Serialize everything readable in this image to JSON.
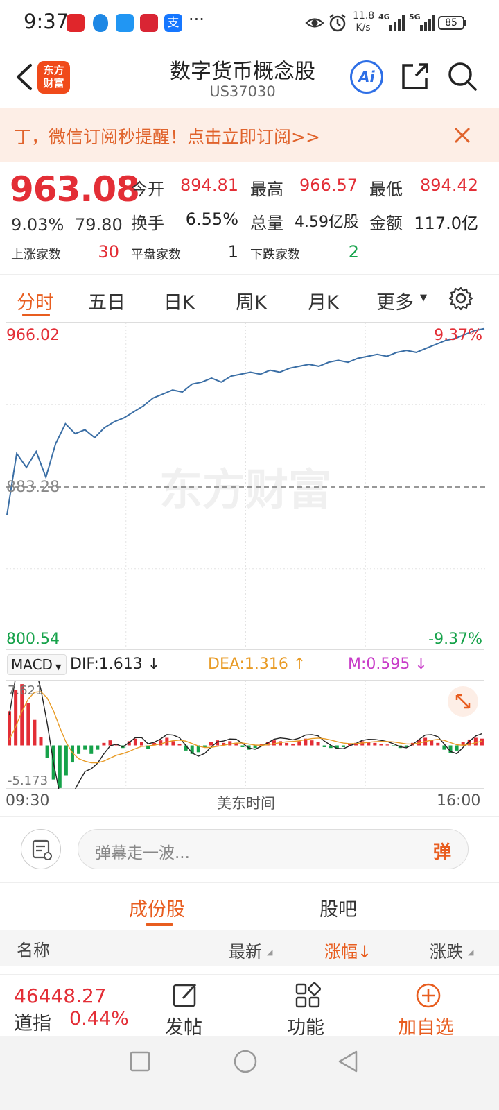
{
  "status_bar": {
    "time": "9:37",
    "net_speed_top": "11.8",
    "net_speed_unit": "K/s",
    "net_4g": "4G",
    "net_5g": "5G",
    "battery": "85",
    "more": "···"
  },
  "header": {
    "logo_line1": "东方",
    "logo_line2": "财富",
    "title": "数字货币概念股",
    "code": "US37030",
    "ai_label": "Ai"
  },
  "banner": {
    "text": "丁，微信订阅秒提醒！点击立即订阅>>"
  },
  "quote": {
    "price": "963.08",
    "change_pct": "9.03%",
    "change": "79.80",
    "open_label": "今开",
    "open": "894.81",
    "high_label": "最高",
    "high": "966.57",
    "low_label": "最低",
    "low": "894.42",
    "turnover_label": "换手",
    "turnover": "6.55%",
    "volume_label": "总量",
    "volume": "4.59亿股",
    "amount_label": "金额",
    "amount": "117.0亿",
    "up_label": "上涨家数",
    "up_count": "30",
    "flat_label": "平盘家数",
    "flat_count": "1",
    "down_label": "下跌家数",
    "down_count": "2"
  },
  "tabs": [
    "分时",
    "五日",
    "日K",
    "周K",
    "月K",
    "更多"
  ],
  "chart": {
    "top_price": "966.02",
    "top_pct": "9.37%",
    "base_price": "883.28",
    "bottom_price": "800.54",
    "bottom_pct": "-9.37%",
    "watermark": "东方财富",
    "time_start": "09:30",
    "time_mid": "美东时间",
    "time_end": "16:00",
    "line_color": "#3a6ea5",
    "up_color": "#e32e36",
    "down_color": "#16a24a"
  },
  "chart_data": {
    "type": "line",
    "title": "",
    "xlabel": "美东时间",
    "ylabel": "",
    "x_range": [
      "09:30",
      "16:00"
    ],
    "ylim": [
      800.54,
      966.02
    ],
    "baseline": 883.28,
    "series": [
      {
        "name": "",
        "values": [
          869,
          900,
          893,
          901,
          888,
          905,
          915,
          910,
          912,
          908,
          913,
          916,
          918,
          921,
          924,
          928,
          930,
          932,
          931,
          935,
          936,
          938,
          936,
          939,
          940,
          941,
          940,
          942,
          941,
          943,
          944,
          945,
          944,
          946,
          947,
          946,
          948,
          949,
          950,
          949,
          951,
          952,
          951,
          953,
          955,
          957,
          958,
          960,
          962,
          963
        ]
      }
    ]
  },
  "macd": {
    "selector": "MACD",
    "dif": "DIF:1.613",
    "dea": "DEA:1.316",
    "m": "M:0.595",
    "top": "7.621",
    "bottom": "-5.173",
    "dif_color": "#222222",
    "dea_color": "#e89b26",
    "m_color": "#c83cc8",
    "hist": [
      4,
      6.5,
      7.2,
      5,
      3,
      1,
      -1.5,
      -4,
      -5,
      -3.5,
      -2,
      -1,
      -0.5,
      -1,
      -0.5,
      0.3,
      0.6,
      0.2,
      -0.3,
      0.5,
      0.8,
      0.4,
      -0.4,
      0.3,
      0.6,
      0.9,
      0.5,
      0.2,
      -0.6,
      -1,
      -0.8,
      -0.2,
      0.4,
      0.6,
      0.3,
      0.5,
      0.3,
      -0.2,
      -0.5,
      -0.3,
      0.2,
      0.4,
      0.6,
      0.5,
      0.3,
      0.2,
      0.5,
      0.8,
      0.6,
      0.4,
      -0.2,
      -0.3,
      -0.4,
      -0.2,
      0.2,
      0.3,
      0.5,
      0.4,
      0.3,
      0.2,
      0.1,
      -0.1,
      -0.3,
      -0.2,
      0.3,
      0.7,
      0.9,
      0.6,
      0.3,
      -0.5,
      -0.9,
      -0.6,
      0.4,
      0.7,
      0.9,
      0.8
    ]
  },
  "danmu": {
    "placeholder": "弹幕走一波...",
    "send_label": "弹"
  },
  "constituents": {
    "tab_active": "成份股",
    "tab_other": "股吧",
    "col_name": "名称",
    "col_latest": "最新",
    "col_pct": "涨幅↓",
    "col_change": "涨跌"
  },
  "bottom_nav": {
    "index_value": "46448.27",
    "index_name": "道指",
    "index_pct": "0.44%",
    "post_label": "发帖",
    "func_label": "功能",
    "add_label": "加自选"
  }
}
